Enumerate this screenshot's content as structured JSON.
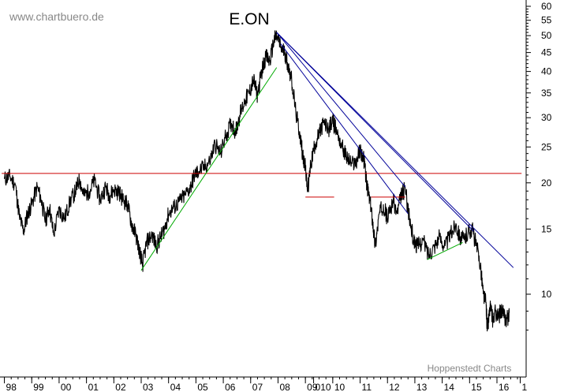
{
  "watermark": "www.chartbuero.de",
  "chart_data": {
    "type": "line",
    "title": "E.ON",
    "source_note": "Hoppenstedt Charts",
    "xlabel": "",
    "ylabel": "",
    "y_scale": "log",
    "ylim": [
      7.2,
      62
    ],
    "xlim": [
      1998.0,
      2016.9
    ],
    "grid": false,
    "x_tick_labels": [
      "98",
      "99",
      "00",
      "01",
      "02",
      "03",
      "04",
      "05",
      "06",
      "07",
      "08",
      "09",
      "010",
      "10",
      "11",
      "12",
      "13",
      "14",
      "15",
      "16",
      "1"
    ],
    "x_tick_positions": [
      1998.0,
      1999.0,
      2000.0,
      2001.0,
      2002.0,
      2003.0,
      2004.0,
      2005.0,
      2006.0,
      2007.0,
      2008.0,
      2009.0,
      2009.3,
      2010.0,
      2011.0,
      2012.0,
      2013.0,
      2014.0,
      2015.0,
      2016.0,
      2016.85
    ],
    "y_ticks": [
      10,
      15,
      20,
      25,
      30,
      35,
      40,
      45,
      50,
      55,
      60
    ],
    "colors": {
      "price": "#000000",
      "support": "#cc0000",
      "resistance_trend": "#000099",
      "uptrend": "#00aa00",
      "axis": "#000000",
      "text": "#888888"
    },
    "series": [
      {
        "values": [
          [
            1998.0,
            20.5
          ],
          [
            1998.2,
            20.8
          ],
          [
            1998.4,
            19.8
          ],
          [
            1998.55,
            16.2
          ],
          [
            1998.7,
            14.8
          ],
          [
            1998.85,
            16.5
          ],
          [
            1999.0,
            17.5
          ],
          [
            1999.2,
            19.5
          ],
          [
            1999.35,
            18.0
          ],
          [
            1999.5,
            15.8
          ],
          [
            1999.65,
            17.2
          ],
          [
            1999.8,
            14.5
          ],
          [
            2000.0,
            17.0
          ],
          [
            2000.2,
            16.0
          ],
          [
            2000.4,
            17.8
          ],
          [
            2000.6,
            19.0
          ],
          [
            2000.75,
            20.5
          ],
          [
            2000.9,
            18.5
          ],
          [
            2001.1,
            19.0
          ],
          [
            2001.3,
            20.3
          ],
          [
            2001.5,
            18.0
          ],
          [
            2001.7,
            19.5
          ],
          [
            2001.85,
            18.5
          ],
          [
            2002.0,
            19.2
          ],
          [
            2002.2,
            18.8
          ],
          [
            2002.35,
            18.0
          ],
          [
            2002.5,
            17.5
          ],
          [
            2002.65,
            15.5
          ],
          [
            2002.8,
            14.5
          ],
          [
            2002.95,
            13.0
          ],
          [
            2003.05,
            12.0
          ],
          [
            2003.2,
            13.8
          ],
          [
            2003.4,
            14.5
          ],
          [
            2003.55,
            13.5
          ],
          [
            2003.7,
            14.2
          ],
          [
            2003.85,
            15.0
          ],
          [
            2004.0,
            16.5
          ],
          [
            2004.2,
            17.2
          ],
          [
            2004.4,
            17.8
          ],
          [
            2004.6,
            18.5
          ],
          [
            2004.8,
            19.5
          ],
          [
            2004.95,
            21.0
          ],
          [
            2005.1,
            21.5
          ],
          [
            2005.3,
            22.0
          ],
          [
            2005.5,
            22.8
          ],
          [
            2005.7,
            25.5
          ],
          [
            2005.9,
            24.0
          ],
          [
            2006.1,
            27.0
          ],
          [
            2006.3,
            29.0
          ],
          [
            2006.45,
            27.5
          ],
          [
            2006.6,
            30.5
          ],
          [
            2006.8,
            33.5
          ],
          [
            2006.95,
            35.0
          ],
          [
            2007.1,
            38.0
          ],
          [
            2007.25,
            34.5
          ],
          [
            2007.4,
            40.0
          ],
          [
            2007.55,
            44.0
          ],
          [
            2007.7,
            42.5
          ],
          [
            2007.85,
            48.5
          ],
          [
            2007.95,
            50.0
          ],
          [
            2008.1,
            46.5
          ],
          [
            2008.25,
            45.0
          ],
          [
            2008.35,
            42.0
          ],
          [
            2008.5,
            38.0
          ],
          [
            2008.65,
            31.0
          ],
          [
            2008.8,
            27.0
          ],
          [
            2008.9,
            24.0
          ],
          [
            2009.0,
            22.0
          ],
          [
            2009.08,
            19.0
          ],
          [
            2009.2,
            22.5
          ],
          [
            2009.35,
            25.5
          ],
          [
            2009.5,
            27.0
          ],
          [
            2009.65,
            29.0
          ],
          [
            2009.85,
            28.0
          ],
          [
            2010.0,
            29.5
          ],
          [
            2010.15,
            27.5
          ],
          [
            2010.35,
            25.0
          ],
          [
            2010.5,
            23.5
          ],
          [
            2010.7,
            22.5
          ],
          [
            2010.85,
            22.8
          ],
          [
            2011.0,
            24.5
          ],
          [
            2011.15,
            23.0
          ],
          [
            2011.25,
            19.5
          ],
          [
            2011.35,
            18.0
          ],
          [
            2011.45,
            16.0
          ],
          [
            2011.55,
            13.5
          ],
          [
            2011.7,
            16.5
          ],
          [
            2011.85,
            17.5
          ],
          [
            2012.0,
            16.0
          ],
          [
            2012.2,
            18.0
          ],
          [
            2012.35,
            16.5
          ],
          [
            2012.5,
            18.5
          ],
          [
            2012.65,
            19.3
          ],
          [
            2012.8,
            16.0
          ],
          [
            2012.95,
            14.0
          ],
          [
            2013.1,
            13.5
          ],
          [
            2013.3,
            14.0
          ],
          [
            2013.5,
            12.8
          ],
          [
            2013.7,
            13.5
          ],
          [
            2013.9,
            14.3
          ],
          [
            2014.1,
            13.5
          ],
          [
            2014.3,
            14.5
          ],
          [
            2014.5,
            15.5
          ],
          [
            2014.65,
            14.3
          ],
          [
            2014.8,
            14.0
          ],
          [
            2014.95,
            14.8
          ],
          [
            2015.1,
            15.0
          ],
          [
            2015.25,
            13.5
          ],
          [
            2015.4,
            12.0
          ],
          [
            2015.5,
            10.0
          ],
          [
            2015.6,
            9.5
          ],
          [
            2015.65,
            8.0
          ],
          [
            2015.75,
            9.3
          ],
          [
            2015.85,
            8.5
          ],
          [
            2015.95,
            9.0
          ],
          [
            2016.05,
            8.6
          ],
          [
            2016.15,
            9.1
          ],
          [
            2016.25,
            8.8
          ],
          [
            2016.35,
            8.5
          ],
          [
            2016.45,
            8.9
          ]
        ]
      }
    ],
    "trendlines": [
      {
        "kind": "support",
        "from": [
          1997.9,
          21.2
        ],
        "to": [
          2016.9,
          21.2
        ]
      },
      {
        "kind": "support",
        "from": [
          2009.0,
          18.3
        ],
        "to": [
          2010.05,
          18.3
        ]
      },
      {
        "kind": "support",
        "from": [
          2011.4,
          18.3
        ],
        "to": [
          2012.65,
          18.3
        ]
      },
      {
        "kind": "resistance_trend",
        "from": [
          2007.95,
          51.0
        ],
        "to": [
          2016.6,
          11.8
        ]
      },
      {
        "kind": "resistance_trend",
        "from": [
          2007.95,
          51.0
        ],
        "to": [
          2015.15,
          14.8
        ]
      },
      {
        "kind": "resistance_trend",
        "from": [
          2007.95,
          51.0
        ],
        "to": [
          2012.65,
          19.5
        ]
      },
      {
        "kind": "resistance_trend",
        "from": [
          2008.1,
          47.5
        ],
        "to": [
          2012.75,
          16.5
        ]
      },
      {
        "kind": "uptrend",
        "from": [
          2003.0,
          11.6
        ],
        "to": [
          2007.95,
          41.0
        ]
      },
      {
        "kind": "uptrend",
        "from": [
          2013.45,
          12.4
        ],
        "to": [
          2014.75,
          13.8
        ]
      }
    ]
  }
}
